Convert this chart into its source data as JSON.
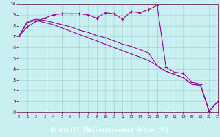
{
  "bg_color": "#c8f0f0",
  "line_color": "#990099",
  "axis_label_bg": "#660066",
  "axis_label_fg": "#ffffff",
  "tick_color": "#660066",
  "grid_color": "#a8d8d8",
  "xlim": [
    0,
    23
  ],
  "ylim": [
    0,
    10
  ],
  "xlabel": "Windchill (Refroidissement éolien,°C)",
  "xtick_labels": [
    "0",
    "1",
    "2",
    "3",
    "4",
    "5",
    "6",
    "7",
    "8",
    "9",
    "10",
    "11",
    "12",
    "13",
    "14",
    "15",
    "16",
    "17",
    "18",
    "19",
    "20",
    "21",
    "22",
    "23"
  ],
  "ytick_labels": [
    "0",
    "1",
    "2",
    "3",
    "4",
    "5",
    "6",
    "7",
    "8",
    "9",
    "10"
  ],
  "line1_x": [
    0,
    1,
    2,
    3,
    4,
    5,
    6,
    7,
    8,
    9,
    10,
    11,
    12,
    13,
    14,
    15,
    16,
    17,
    18,
    19,
    20,
    21,
    22,
    23
  ],
  "line1_y": [
    7.0,
    7.9,
    8.4,
    8.7,
    9.0,
    9.1,
    9.1,
    9.1,
    9.0,
    8.7,
    9.2,
    9.1,
    8.6,
    9.3,
    9.2,
    9.5,
    9.9,
    4.2,
    3.7,
    3.6,
    2.8,
    2.6,
    0.1,
    1.0
  ],
  "line2_x": [
    0,
    1,
    2,
    3,
    4,
    5,
    6,
    7,
    8,
    9,
    10,
    11,
    12,
    13,
    14,
    15,
    16,
    17,
    18,
    19,
    20,
    21,
    22,
    23
  ],
  "line2_y": [
    7.0,
    8.4,
    8.6,
    8.5,
    8.3,
    8.1,
    7.9,
    7.6,
    7.4,
    7.1,
    6.9,
    6.6,
    6.3,
    6.1,
    5.8,
    5.5,
    4.3,
    3.8,
    3.5,
    3.2,
    2.6,
    2.5,
    0.1,
    1.0
  ],
  "line3_x": [
    0,
    1,
    2,
    3,
    4,
    5,
    6,
    7,
    8,
    9,
    10,
    11,
    12,
    13,
    14,
    15,
    16,
    17,
    18,
    19,
    20,
    21,
    22,
    23
  ],
  "line3_y": [
    7.0,
    8.3,
    8.5,
    8.3,
    8.1,
    7.8,
    7.5,
    7.2,
    6.9,
    6.6,
    6.3,
    6.0,
    5.7,
    5.4,
    5.1,
    4.8,
    4.3,
    3.8,
    3.5,
    3.2,
    2.6,
    2.5,
    0.1,
    1.0
  ]
}
